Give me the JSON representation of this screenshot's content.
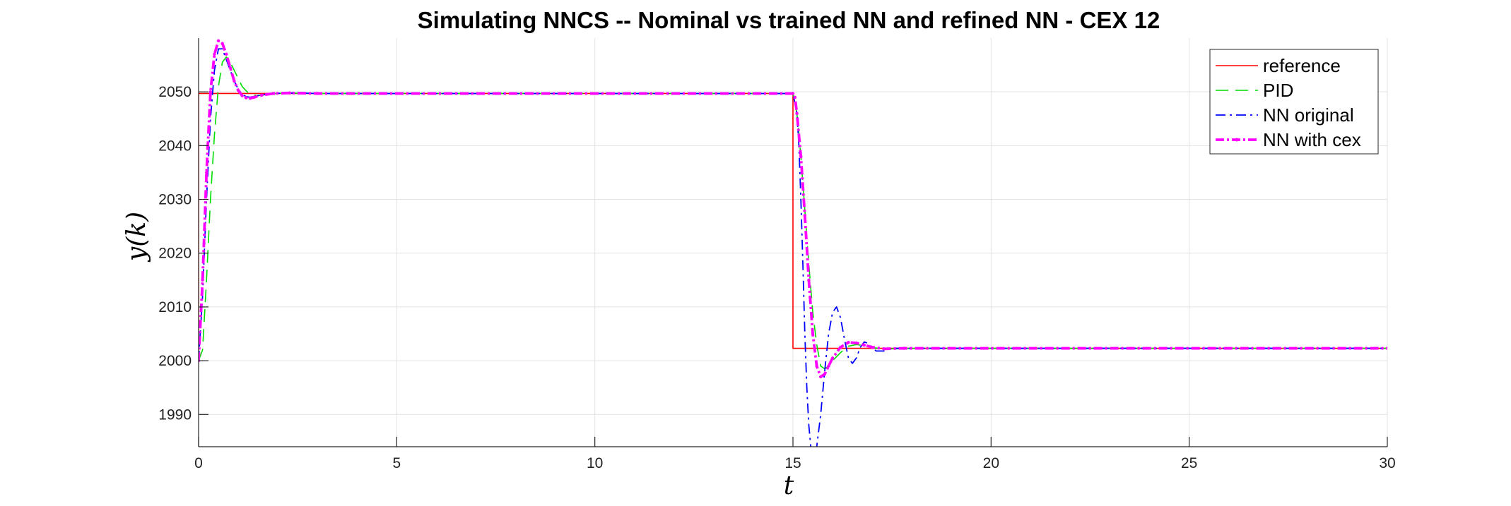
{
  "chart_data": {
    "type": "line",
    "title": "Simulating NNCS -- Nominal vs trained NN and refined NN - CEX 12",
    "xlabel": "t",
    "ylabel": "y(k)",
    "xlim": [
      0,
      30
    ],
    "ylim": [
      1984,
      2060
    ],
    "xticks": [
      0,
      5,
      10,
      15,
      20,
      25,
      30
    ],
    "yticks": [
      1990,
      2000,
      2010,
      2020,
      2030,
      2040,
      2050
    ],
    "grid": true,
    "legend_position": "top-right",
    "series": [
      {
        "name": "reference",
        "color": "#ff0000",
        "dash": "solid",
        "points": [
          [
            0,
            2000
          ],
          [
            0,
            2049.7
          ],
          [
            15,
            2049.7
          ],
          [
            15,
            2002.3
          ],
          [
            30,
            2002.3
          ]
        ]
      },
      {
        "name": "PID",
        "color": "#00dd00",
        "dash": "dashed",
        "points": [
          [
            0,
            2000
          ],
          [
            0.1,
            2002
          ],
          [
            0.2,
            2015
          ],
          [
            0.3,
            2030
          ],
          [
            0.4,
            2042
          ],
          [
            0.5,
            2051
          ],
          [
            0.6,
            2055.5
          ],
          [
            0.7,
            2056.5
          ],
          [
            0.8,
            2055.5
          ],
          [
            0.9,
            2054
          ],
          [
            1.0,
            2052.5
          ],
          [
            1.1,
            2051
          ],
          [
            1.2,
            2050.2
          ],
          [
            1.3,
            2049.5
          ],
          [
            1.5,
            2049.3
          ],
          [
            1.8,
            2049.6
          ],
          [
            2.2,
            2049.8
          ],
          [
            3,
            2049.7
          ],
          [
            15,
            2049.7
          ],
          [
            15.1,
            2046
          ],
          [
            15.2,
            2038
          ],
          [
            15.3,
            2028
          ],
          [
            15.4,
            2018
          ],
          [
            15.5,
            2009
          ],
          [
            15.6,
            2003
          ],
          [
            15.7,
            1999
          ],
          [
            15.8,
            1998.5
          ],
          [
            15.9,
            1999
          ],
          [
            16.0,
            2000
          ],
          [
            16.2,
            2001.5
          ],
          [
            16.4,
            2002.7
          ],
          [
            16.6,
            2003.0
          ],
          [
            16.8,
            2002.8
          ],
          [
            17.0,
            2002.4
          ],
          [
            17.4,
            2002.2
          ],
          [
            18,
            2002.3
          ],
          [
            30,
            2002.3
          ]
        ]
      },
      {
        "name": "NN original",
        "color": "#0000ff",
        "dash": "dashdot",
        "points": [
          [
            0,
            2000
          ],
          [
            0.1,
            2012
          ],
          [
            0.2,
            2030
          ],
          [
            0.3,
            2045
          ],
          [
            0.4,
            2054
          ],
          [
            0.5,
            2058
          ],
          [
            0.6,
            2058
          ],
          [
            0.7,
            2056
          ],
          [
            0.8,
            2054
          ],
          [
            0.9,
            2052
          ],
          [
            1.0,
            2050.5
          ],
          [
            1.1,
            2049.6
          ],
          [
            1.2,
            2049.1
          ],
          [
            1.3,
            2049.0
          ],
          [
            1.5,
            2049.3
          ],
          [
            1.8,
            2049.7
          ],
          [
            2.5,
            2049.8
          ],
          [
            3,
            2049.7
          ],
          [
            15,
            2049.7
          ],
          [
            15.1,
            2046
          ],
          [
            15.15,
            2040
          ],
          [
            15.2,
            2030
          ],
          [
            15.25,
            2018
          ],
          [
            15.3,
            2005
          ],
          [
            15.35,
            1995
          ],
          [
            15.4,
            1988
          ],
          [
            15.45,
            1984
          ],
          [
            15.5,
            1982
          ],
          [
            15.55,
            1982
          ],
          [
            15.6,
            1984
          ],
          [
            15.7,
            1990
          ],
          [
            15.8,
            1998
          ],
          [
            15.9,
            2005
          ],
          [
            16.0,
            2009
          ],
          [
            16.1,
            2010
          ],
          [
            16.2,
            2008
          ],
          [
            16.3,
            2004
          ],
          [
            16.4,
            2000.5
          ],
          [
            16.5,
            1999.5
          ],
          [
            16.6,
            2000.5
          ],
          [
            16.7,
            2002.5
          ],
          [
            16.8,
            2003.5
          ],
          [
            16.9,
            2003.2
          ],
          [
            17.0,
            2002.5
          ],
          [
            17.1,
            2001.8
          ],
          [
            17.3,
            2001.8
          ],
          [
            17.5,
            2002.3
          ],
          [
            18,
            2002.3
          ],
          [
            30,
            2002.3
          ]
        ]
      },
      {
        "name": "NN with cex",
        "color": "#ff00ff",
        "dash": "dashdot-dots",
        "points": [
          [
            0,
            2000
          ],
          [
            0.1,
            2015
          ],
          [
            0.2,
            2035
          ],
          [
            0.3,
            2050
          ],
          [
            0.4,
            2057
          ],
          [
            0.5,
            2059.5
          ],
          [
            0.6,
            2059
          ],
          [
            0.7,
            2057
          ],
          [
            0.8,
            2054.5
          ],
          [
            0.9,
            2052
          ],
          [
            1.0,
            2050.3
          ],
          [
            1.1,
            2049.3
          ],
          [
            1.2,
            2048.9
          ],
          [
            1.3,
            2048.8
          ],
          [
            1.4,
            2049
          ],
          [
            1.6,
            2049.4
          ],
          [
            1.9,
            2049.7
          ],
          [
            2.3,
            2049.8
          ],
          [
            3,
            2049.7
          ],
          [
            15,
            2049.7
          ],
          [
            15.05,
            2049
          ],
          [
            15.1,
            2046
          ],
          [
            15.2,
            2038
          ],
          [
            15.3,
            2027
          ],
          [
            15.4,
            2015
          ],
          [
            15.5,
            2005
          ],
          [
            15.6,
            1999
          ],
          [
            15.7,
            1997
          ],
          [
            15.8,
            1997.5
          ],
          [
            15.9,
            1999
          ],
          [
            16.0,
            2000.5
          ],
          [
            16.2,
            2002.5
          ],
          [
            16.4,
            2003.4
          ],
          [
            16.6,
            2003.3
          ],
          [
            16.8,
            2002.9
          ],
          [
            17.0,
            2002.5
          ],
          [
            17.3,
            2002.2
          ],
          [
            17.8,
            2002.3
          ],
          [
            30,
            2002.3
          ]
        ]
      }
    ]
  }
}
